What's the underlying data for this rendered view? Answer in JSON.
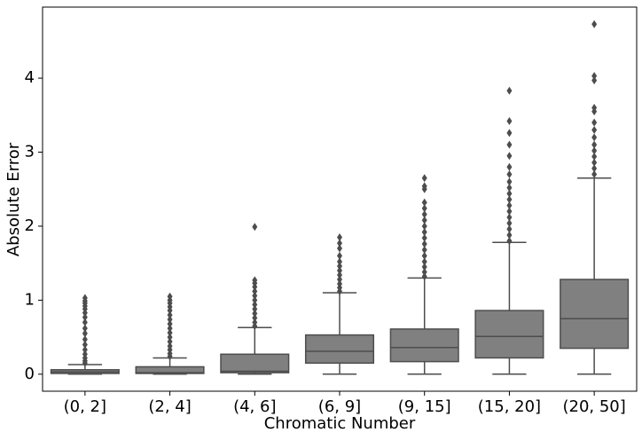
{
  "chart_data": {
    "type": "box",
    "x_label": "Chromatic Number",
    "y_label": "Absolute Error",
    "categories": [
      "(0, 2]",
      "(2, 4]",
      "(4, 6]",
      "(6, 9]",
      "(9, 15]",
      "(15, 20]",
      "(20, 50]"
    ],
    "color": "#808080",
    "ylim": [
      -0.23,
      4.96
    ],
    "yticks": [
      0,
      1,
      2,
      3,
      4
    ],
    "boxes": [
      {
        "whislo": 0,
        "q1": 0.01,
        "med": 0.03,
        "q3": 0.06,
        "whishi": 0.13,
        "fliers": [
          0.15,
          0.18,
          0.22,
          0.27,
          0.33,
          0.4,
          0.47,
          0.55,
          0.62,
          0.7,
          0.77,
          0.83,
          0.88,
          0.92,
          0.96,
          0.99,
          1.03
        ]
      },
      {
        "whislo": 0,
        "q1": 0.01,
        "med": 0.02,
        "q3": 0.1,
        "whishi": 0.22,
        "fliers": [
          0.24,
          0.28,
          0.33,
          0.38,
          0.44,
          0.5,
          0.56,
          0.62,
          0.68,
          0.74,
          0.8,
          0.86,
          0.91,
          0.96,
          1.0,
          1.05
        ]
      },
      {
        "whislo": 0,
        "q1": 0.02,
        "med": 0.04,
        "q3": 0.27,
        "whishi": 0.63,
        "fliers": [
          0.65,
          0.7,
          0.76,
          0.82,
          0.88,
          0.94,
          1.0,
          1.06,
          1.12,
          1.18,
          1.23,
          1.27,
          1.99
        ]
      },
      {
        "whislo": 0,
        "q1": 0.15,
        "med": 0.31,
        "q3": 0.53,
        "whishi": 1.1,
        "fliers": [
          1.12,
          1.17,
          1.22,
          1.28,
          1.34,
          1.4,
          1.46,
          1.52,
          1.6,
          1.7,
          1.77,
          1.85
        ]
      },
      {
        "whislo": 0,
        "q1": 0.17,
        "med": 0.36,
        "q3": 0.61,
        "whishi": 1.3,
        "fliers": [
          1.32,
          1.38,
          1.45,
          1.52,
          1.6,
          1.68,
          1.76,
          1.84,
          1.92,
          2.0,
          2.08,
          2.16,
          2.24,
          2.32,
          2.5,
          2.54,
          2.65
        ]
      },
      {
        "whislo": 0,
        "q1": 0.22,
        "med": 0.51,
        "q3": 0.86,
        "whishi": 1.78,
        "fliers": [
          1.8,
          1.88,
          1.96,
          2.04,
          2.12,
          2.2,
          2.28,
          2.36,
          2.44,
          2.52,
          2.6,
          2.7,
          2.8,
          2.95,
          3.1,
          3.26,
          3.42,
          3.83
        ]
      },
      {
        "whislo": 0,
        "q1": 0.35,
        "med": 0.75,
        "q3": 1.28,
        "whishi": 2.65,
        "fliers": [
          2.7,
          2.78,
          2.86,
          2.94,
          3.02,
          3.1,
          3.2,
          3.3,
          3.4,
          3.55,
          3.6,
          3.97,
          4.03,
          4.73
        ]
      }
    ]
  }
}
